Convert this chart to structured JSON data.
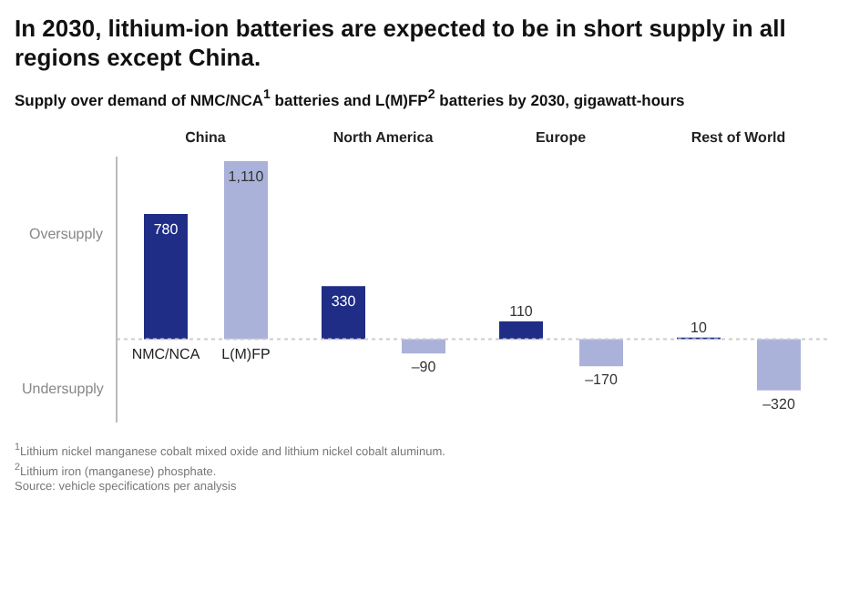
{
  "chart_data": {
    "type": "bar",
    "title": "In 2030, lithium-ion batteries are expected to be in short supply in all regions except China.",
    "subtitle": "Supply over demand of NMC/NCA$^{1}$ batteries and L(M)FP$^{2}$ batteries by 2030, gigawatt-hours",
    "categories": [
      "China",
      "North America",
      "Europe",
      "Rest of World"
    ],
    "series": [
      {
        "name": "NMC/NCA",
        "color": "#1f2d86",
        "values": [
          780,
          330,
          110,
          10
        ],
        "value_labels": [
          "780",
          "330",
          "110",
          "10"
        ]
      },
      {
        "name": "L(M)FP",
        "color": "#aab2da",
        "values": [
          1110,
          -90,
          -170,
          -320
        ],
        "value_labels": [
          "1,110",
          "–90",
          "–170",
          "–320"
        ]
      }
    ],
    "annotations": [
      "Oversupply",
      "Undersupply",
      "$^{1}$Lithium nickel manganese cobalt mixed oxide and lithium nickel cobalt aluminum.",
      "$^{2}$Lithium iron (manganese) phosphate.",
      "Source: vehicle specifications per analysis"
    ],
    "ref_lines": [
      {
        "axis": "y",
        "value": 0,
        "color": "#cccccc",
        "line_style": "dashed"
      }
    ]
  }
}
